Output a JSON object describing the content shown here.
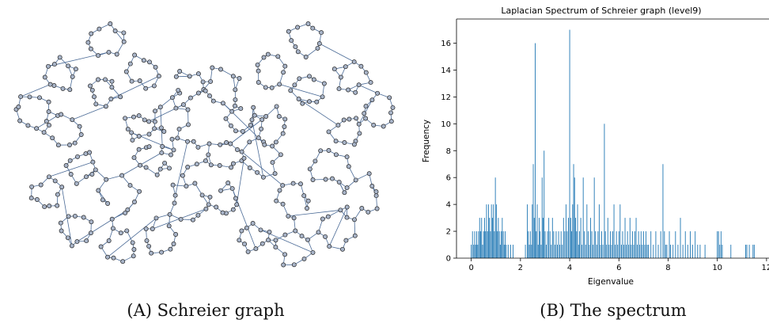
{
  "captions": {
    "a_prefix": "(A)",
    "a_text": "Schreier graph",
    "b_prefix": "(B)",
    "b_text": "The spectrum"
  },
  "colors": {
    "bar": "#1f77b4",
    "edge": "#4a6a96",
    "node_fill": "#a8b4c8",
    "node_stroke": "#222222",
    "axis": "#000000"
  },
  "graph": {
    "type": "schreier-graph-drawing",
    "level": 9
  },
  "chart_data": {
    "type": "bar",
    "title": "Laplacian Spectrum of Schreier graph (level9)",
    "xlabel": "Eigenvalue",
    "ylabel": "Frequency",
    "xlim": [
      -0.6,
      12.1
    ],
    "ylim": [
      0,
      17.8
    ],
    "xticks": [
      0,
      2,
      4,
      6,
      8,
      10,
      12
    ],
    "yticks": [
      0,
      2,
      4,
      6,
      8,
      10,
      12,
      14,
      16
    ],
    "tick_labels_x": [
      "0",
      "2",
      "4",
      "6",
      "8",
      "10",
      "12"
    ],
    "tick_labels_y": [
      "0",
      "2",
      "4",
      "6",
      "8",
      "10",
      "12",
      "14",
      "16"
    ],
    "grid": false,
    "points": [
      [
        0.0,
        1
      ],
      [
        0.05,
        2
      ],
      [
        0.1,
        1
      ],
      [
        0.14,
        2
      ],
      [
        0.18,
        1
      ],
      [
        0.22,
        2
      ],
      [
        0.26,
        1
      ],
      [
        0.3,
        2
      ],
      [
        0.34,
        3
      ],
      [
        0.38,
        2
      ],
      [
        0.42,
        3
      ],
      [
        0.46,
        1
      ],
      [
        0.5,
        2
      ],
      [
        0.54,
        3
      ],
      [
        0.58,
        2
      ],
      [
        0.62,
        4
      ],
      [
        0.66,
        2
      ],
      [
        0.7,
        4
      ],
      [
        0.74,
        3
      ],
      [
        0.78,
        2
      ],
      [
        0.82,
        4
      ],
      [
        0.86,
        3
      ],
      [
        0.9,
        4
      ],
      [
        0.94,
        2
      ],
      [
        0.98,
        6
      ],
      [
        1.02,
        4
      ],
      [
        1.06,
        2
      ],
      [
        1.1,
        3
      ],
      [
        1.14,
        2
      ],
      [
        1.18,
        1
      ],
      [
        1.22,
        2
      ],
      [
        1.26,
        3
      ],
      [
        1.3,
        2
      ],
      [
        1.34,
        1
      ],
      [
        1.38,
        2
      ],
      [
        1.42,
        1
      ],
      [
        1.5,
        1
      ],
      [
        1.6,
        1
      ],
      [
        1.7,
        1
      ],
      [
        2.2,
        1
      ],
      [
        2.28,
        4
      ],
      [
        2.32,
        2
      ],
      [
        2.36,
        1
      ],
      [
        2.4,
        2
      ],
      [
        2.45,
        1
      ],
      [
        2.48,
        4
      ],
      [
        2.52,
        7
      ],
      [
        2.56,
        3
      ],
      [
        2.6,
        16
      ],
      [
        2.64,
        2
      ],
      [
        2.68,
        4
      ],
      [
        2.72,
        1
      ],
      [
        2.76,
        3
      ],
      [
        2.8,
        2
      ],
      [
        2.84,
        1
      ],
      [
        2.88,
        6
      ],
      [
        2.92,
        3
      ],
      [
        2.96,
        8
      ],
      [
        3.0,
        2
      ],
      [
        3.05,
        1
      ],
      [
        3.1,
        2
      ],
      [
        3.15,
        3
      ],
      [
        3.2,
        2
      ],
      [
        3.25,
        1
      ],
      [
        3.3,
        3
      ],
      [
        3.35,
        2
      ],
      [
        3.4,
        1
      ],
      [
        3.45,
        2
      ],
      [
        3.5,
        1
      ],
      [
        3.55,
        2
      ],
      [
        3.6,
        1
      ],
      [
        3.65,
        2
      ],
      [
        3.7,
        1
      ],
      [
        3.75,
        3
      ],
      [
        3.8,
        2
      ],
      [
        3.85,
        4
      ],
      [
        3.9,
        2
      ],
      [
        3.95,
        3
      ],
      [
        4.0,
        17
      ],
      [
        4.04,
        3
      ],
      [
        4.08,
        2
      ],
      [
        4.12,
        4
      ],
      [
        4.16,
        7
      ],
      [
        4.2,
        6
      ],
      [
        4.24,
        3
      ],
      [
        4.28,
        2
      ],
      [
        4.32,
        4
      ],
      [
        4.36,
        1
      ],
      [
        4.4,
        2
      ],
      [
        4.45,
        3
      ],
      [
        4.5,
        1
      ],
      [
        4.55,
        6
      ],
      [
        4.6,
        2
      ],
      [
        4.65,
        1
      ],
      [
        4.7,
        4
      ],
      [
        4.75,
        2
      ],
      [
        4.8,
        1
      ],
      [
        4.85,
        3
      ],
      [
        4.9,
        2
      ],
      [
        4.95,
        1
      ],
      [
        5.0,
        6
      ],
      [
        5.05,
        2
      ],
      [
        5.1,
        1
      ],
      [
        5.15,
        2
      ],
      [
        5.2,
        4
      ],
      [
        5.25,
        1
      ],
      [
        5.3,
        2
      ],
      [
        5.35,
        1
      ],
      [
        5.41,
        10
      ],
      [
        5.45,
        2
      ],
      [
        5.5,
        1
      ],
      [
        5.55,
        3
      ],
      [
        5.6,
        1
      ],
      [
        5.65,
        2
      ],
      [
        5.7,
        1
      ],
      [
        5.75,
        2
      ],
      [
        5.8,
        4
      ],
      [
        5.85,
        1
      ],
      [
        5.9,
        2
      ],
      [
        5.95,
        1
      ],
      [
        6.0,
        2
      ],
      [
        6.05,
        4
      ],
      [
        6.1,
        1
      ],
      [
        6.15,
        2
      ],
      [
        6.2,
        1
      ],
      [
        6.25,
        3
      ],
      [
        6.3,
        1
      ],
      [
        6.35,
        2
      ],
      [
        6.4,
        1
      ],
      [
        6.45,
        3
      ],
      [
        6.5,
        1
      ],
      [
        6.55,
        2
      ],
      [
        6.6,
        1
      ],
      [
        6.65,
        2
      ],
      [
        6.7,
        3
      ],
      [
        6.75,
        1
      ],
      [
        6.8,
        2
      ],
      [
        6.85,
        1
      ],
      [
        6.9,
        2
      ],
      [
        6.95,
        1
      ],
      [
        7.0,
        2
      ],
      [
        7.05,
        1
      ],
      [
        7.1,
        2
      ],
      [
        7.15,
        1
      ],
      [
        7.2,
        1
      ],
      [
        7.3,
        2
      ],
      [
        7.4,
        1
      ],
      [
        7.5,
        2
      ],
      [
        7.6,
        1
      ],
      [
        7.7,
        2
      ],
      [
        7.79,
        7
      ],
      [
        7.85,
        2
      ],
      [
        7.9,
        1
      ],
      [
        7.95,
        1
      ],
      [
        8.05,
        2
      ],
      [
        8.1,
        1
      ],
      [
        8.2,
        1
      ],
      [
        8.3,
        2
      ],
      [
        8.4,
        1
      ],
      [
        8.5,
        3
      ],
      [
        8.6,
        1
      ],
      [
        8.7,
        2
      ],
      [
        8.8,
        1
      ],
      [
        8.9,
        2
      ],
      [
        9.0,
        1
      ],
      [
        9.1,
        2
      ],
      [
        9.2,
        1
      ],
      [
        9.3,
        1
      ],
      [
        9.5,
        1
      ],
      [
        10.0,
        2
      ],
      [
        10.05,
        2
      ],
      [
        10.1,
        1
      ],
      [
        10.15,
        2
      ],
      [
        10.2,
        1
      ],
      [
        10.55,
        1
      ],
      [
        11.15,
        1
      ],
      [
        11.2,
        1
      ],
      [
        11.3,
        1
      ],
      [
        11.45,
        1
      ],
      [
        11.5,
        1
      ]
    ]
  }
}
